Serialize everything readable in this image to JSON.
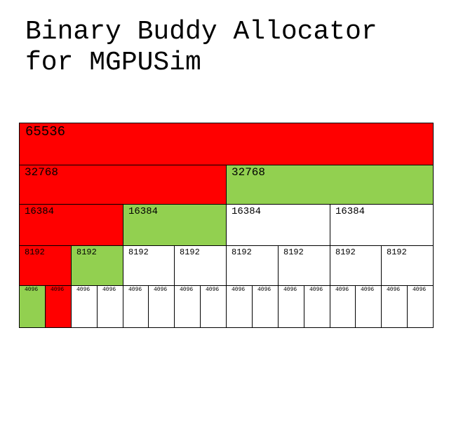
{
  "title": {
    "line1": "Binary Buddy Allocator",
    "line2": "for MGPUSim"
  },
  "colors": {
    "allocated": "#ff0000",
    "free": "#92d050",
    "untracked": "#ffffff",
    "border": "#000000"
  },
  "levels": [
    {
      "size": "65536",
      "blocks": [
        "allocated"
      ]
    },
    {
      "size": "32768",
      "blocks": [
        "allocated",
        "free"
      ]
    },
    {
      "size": "16384",
      "blocks": [
        "allocated",
        "free",
        "untracked",
        "untracked"
      ]
    },
    {
      "size": "8192",
      "blocks": [
        "allocated",
        "free",
        "untracked",
        "untracked",
        "untracked",
        "untracked",
        "untracked",
        "untracked"
      ]
    },
    {
      "size": "4096",
      "blocks": [
        "free",
        "allocated",
        "untracked",
        "untracked",
        "untracked",
        "untracked",
        "untracked",
        "untracked",
        "untracked",
        "untracked",
        "untracked",
        "untracked",
        "untracked",
        "untracked",
        "untracked",
        "untracked"
      ]
    }
  ]
}
